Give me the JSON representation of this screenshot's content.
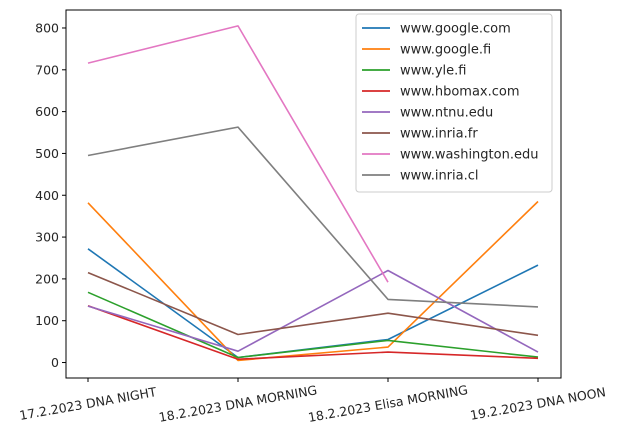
{
  "chart_data": {
    "type": "line",
    "categories": [
      "17.2.2023 DNA NIGHT",
      "18.2.2023 DNA MORNING",
      "18.2.2023 Elisa MORNING",
      "19.2.2023 DNA NOON"
    ],
    "series": [
      {
        "name": "www.google.com",
        "color": "#1f77b4",
        "values": [
          272,
          12,
          55,
          233
        ]
      },
      {
        "name": "www.google.fi",
        "color": "#ff7f0e",
        "values": [
          382,
          5,
          37,
          385
        ]
      },
      {
        "name": "www.yle.fi",
        "color": "#2ca02c",
        "values": [
          168,
          12,
          53,
          13
        ]
      },
      {
        "name": "www.hbomax.com",
        "color": "#d62728",
        "values": [
          136,
          8,
          25,
          10
        ]
      },
      {
        "name": "www.ntnu.edu",
        "color": "#9467bd",
        "values": [
          135,
          27,
          220,
          25
        ]
      },
      {
        "name": "www.inria.fr",
        "color": "#8c564b",
        "values": [
          215,
          67,
          118,
          65
        ]
      },
      {
        "name": "www.washington.edu",
        "color": "#e377c2",
        "values": [
          716,
          805,
          192,
          null
        ]
      },
      {
        "name": "www.inria.cl",
        "color": "#7f7f7f",
        "values": [
          495,
          563,
          151,
          133
        ]
      }
    ],
    "yticks": [
      0,
      100,
      200,
      300,
      400,
      500,
      600,
      700,
      800
    ],
    "ylim": [
      -37,
      843
    ],
    "title": "",
    "xlabel": "",
    "ylabel": "",
    "grid": false,
    "legend_placement": "top-right"
  }
}
